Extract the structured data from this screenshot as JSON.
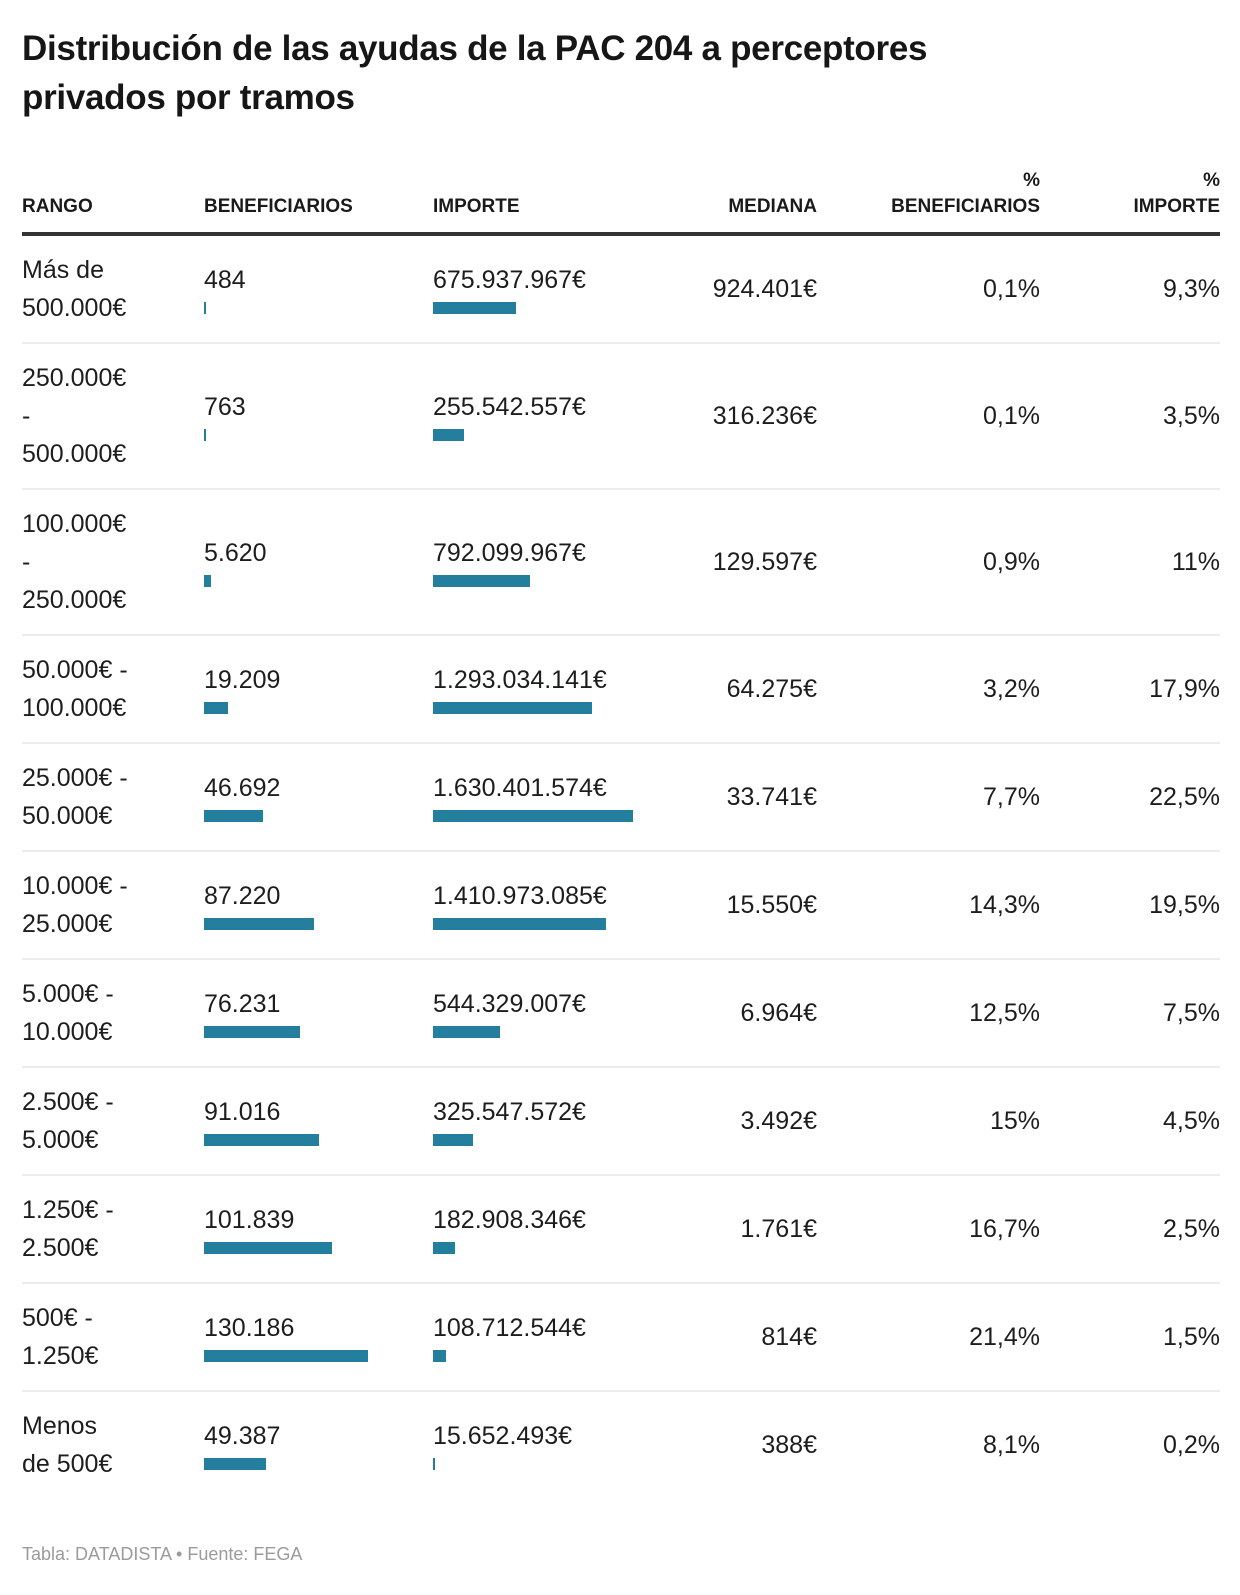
{
  "title_lines": "Distribución de las ayudas de la PAC 204 a perceptores\nprivados por tramos",
  "footer": "Tabla: DATADISTA • Fuente: FEGA",
  "colors": {
    "bar": "#247e9e",
    "header_rule": "#333333",
    "row_divider": "#ececec",
    "title_text": "#161616",
    "cell_text": "#1d1d1d",
    "footer_text": "#9b9b9b"
  },
  "header": {
    "rango": "RANGO",
    "beneficiarios": "BENEFICIARIOS",
    "importe": "IMPORTE",
    "mediana": "MEDIANA",
    "pct_beneficiarios": "%\nBENEFICIARIOS",
    "pct_importe": "%\nIMPORTE"
  },
  "chart_data": {
    "type": "table",
    "title": "Distribución de las ayudas de la PAC 204 a perceptores privados por tramos",
    "columns": [
      "RANGO",
      "BENEFICIARIOS",
      "IMPORTE",
      "MEDIANA",
      "% BENEFICIARIOS",
      "% IMPORTE"
    ],
    "bar_columns": [
      "BENEFICIARIOS",
      "IMPORTE"
    ],
    "rows": [
      {
        "rango": "Más de\n500.000€",
        "beneficiarios": "484",
        "beneficiarios_value": 484,
        "importe": "675.937.967€",
        "importe_value": 675937967,
        "mediana": "924.401€",
        "pct_beneficiarios": "0,1%",
        "pct_importe": "9,3%"
      },
      {
        "rango": "250.000€\n-\n500.000€",
        "beneficiarios": "763",
        "beneficiarios_value": 763,
        "importe": "255.542.557€",
        "importe_value": 255542557,
        "mediana": "316.236€",
        "pct_beneficiarios": "0,1%",
        "pct_importe": "3,5%"
      },
      {
        "rango": "100.000€\n-\n250.000€",
        "beneficiarios": "5.620",
        "beneficiarios_value": 5620,
        "importe": "792.099.967€",
        "importe_value": 792099967,
        "mediana": "129.597€",
        "pct_beneficiarios": "0,9%",
        "pct_importe": "11%"
      },
      {
        "rango": "50.000€ -\n100.000€",
        "beneficiarios": "19.209",
        "beneficiarios_value": 19209,
        "importe": "1.293.034.141€",
        "importe_value": 1293034141,
        "mediana": "64.275€",
        "pct_beneficiarios": "3,2%",
        "pct_importe": "17,9%"
      },
      {
        "rango": "25.000€ -\n50.000€",
        "beneficiarios": "46.692",
        "beneficiarios_value": 46692,
        "importe": "1.630.401.574€",
        "importe_value": 1630401574,
        "mediana": "33.741€",
        "pct_beneficiarios": "7,7%",
        "pct_importe": "22,5%"
      },
      {
        "rango": "10.000€ -\n25.000€",
        "beneficiarios": "87.220",
        "beneficiarios_value": 87220,
        "importe": "1.410.973.085€",
        "importe_value": 1410973085,
        "mediana": "15.550€",
        "pct_beneficiarios": "14,3%",
        "pct_importe": "19,5%"
      },
      {
        "rango": "5.000€ -\n10.000€",
        "beneficiarios": "76.231",
        "beneficiarios_value": 76231,
        "importe": "544.329.007€",
        "importe_value": 544329007,
        "mediana": "6.964€",
        "pct_beneficiarios": "12,5%",
        "pct_importe": "7,5%"
      },
      {
        "rango": "2.500€ -\n5.000€",
        "beneficiarios": "91.016",
        "beneficiarios_value": 91016,
        "importe": "325.547.572€",
        "importe_value": 325547572,
        "mediana": "3.492€",
        "pct_beneficiarios": "15%",
        "pct_importe": "4,5%"
      },
      {
        "rango": "1.250€ -\n2.500€",
        "beneficiarios": "101.839",
        "beneficiarios_value": 101839,
        "importe": "182.908.346€",
        "importe_value": 182908346,
        "mediana": "1.761€",
        "pct_beneficiarios": "16,7%",
        "pct_importe": "2,5%"
      },
      {
        "rango": "500€ -\n1.250€",
        "beneficiarios": "130.186",
        "beneficiarios_value": 130186,
        "importe": "108.712.544€",
        "importe_value": 108712544,
        "mediana": "814€",
        "pct_beneficiarios": "21,4%",
        "pct_importe": "1,5%"
      },
      {
        "rango": "Menos\nde 500€",
        "beneficiarios": "49.387",
        "beneficiarios_value": 49387,
        "importe": "15.652.493€",
        "importe_value": 15652493,
        "mediana": "388€",
        "pct_beneficiarios": "8,1%",
        "pct_importe": "0,2%"
      }
    ]
  }
}
